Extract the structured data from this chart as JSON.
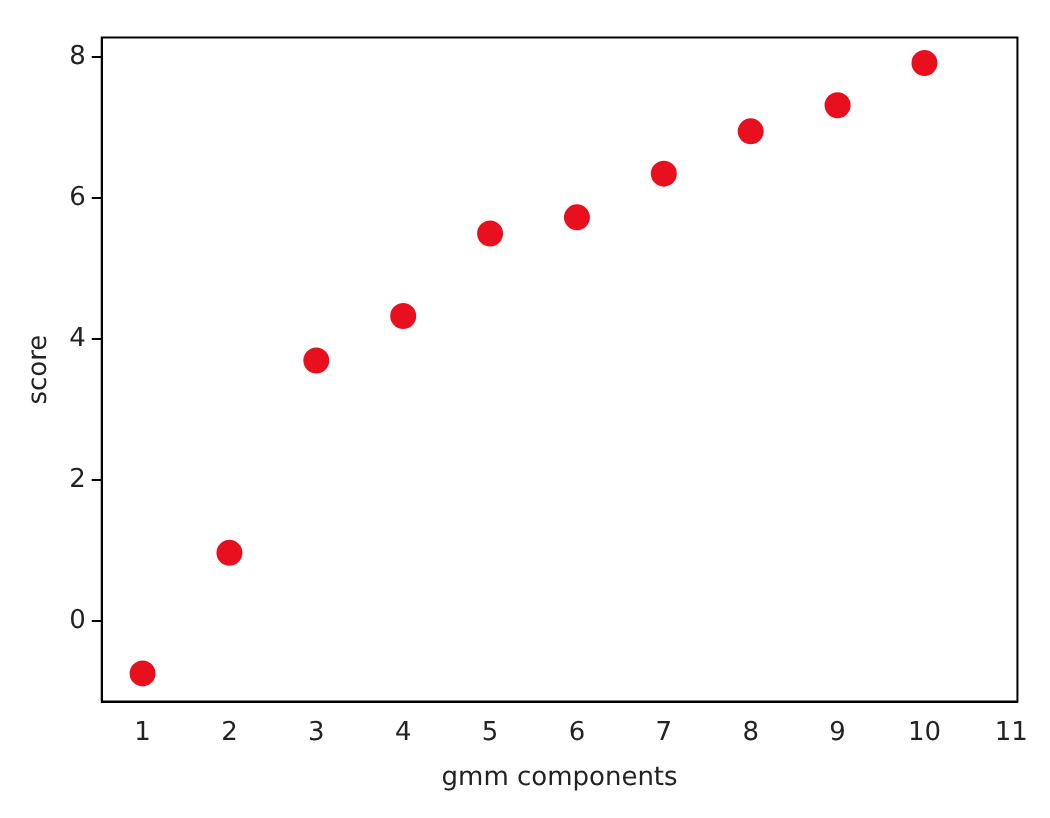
{
  "chart_data": {
    "type": "scatter",
    "xlabel": "gmm components",
    "ylabel": "score",
    "x": [
      1,
      2,
      3,
      4,
      5,
      6,
      7,
      8,
      9,
      10
    ],
    "series": [
      {
        "color": "#e8101e",
        "values": [
          -0.74,
          0.97,
          3.7,
          4.33,
          5.5,
          5.73,
          6.35,
          6.95,
          7.32,
          7.92
        ]
      }
    ],
    "xlim": [
      0.53,
      11.07
    ],
    "ylim": [
      -1.14,
      8.28
    ],
    "xticks": [
      1,
      2,
      3,
      4,
      5,
      6,
      7,
      8,
      9,
      10,
      11
    ],
    "yticks": [
      0,
      2,
      4,
      6,
      8
    ],
    "grid": false,
    "legend": false,
    "marker": "circle"
  }
}
